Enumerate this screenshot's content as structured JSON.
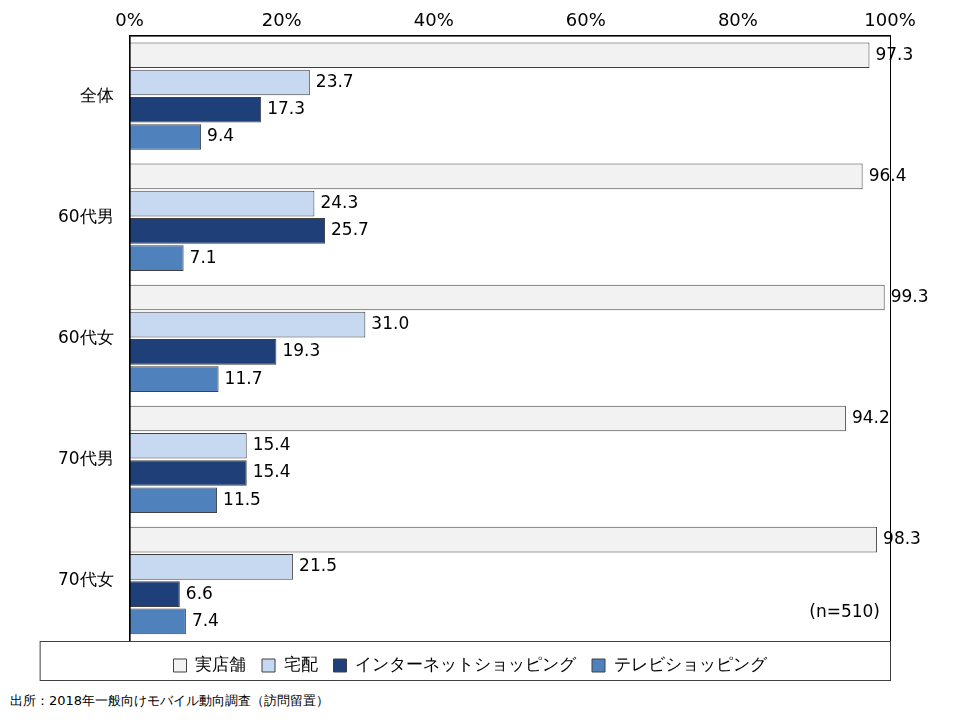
{
  "chart_data": {
    "type": "bar",
    "orientation": "horizontal",
    "categories": [
      "全体",
      "60代男",
      "60代女",
      "70代男",
      "70代女"
    ],
    "series": [
      {
        "name": "実店舗",
        "color": "#f2f2f2",
        "values": [
          97.3,
          96.4,
          99.3,
          94.2,
          98.3
        ],
        "value_labels": [
          "97.3",
          "96.4",
          "99.3",
          "94.2",
          "98.3"
        ]
      },
      {
        "name": "宅配",
        "color": "#c6d9f1",
        "values": [
          23.7,
          24.3,
          31.0,
          15.4,
          21.5
        ],
        "value_labels": [
          "23.7",
          "24.3",
          "31.0",
          "15.4",
          "21.5"
        ]
      },
      {
        "name": "インターネットショッピング",
        "color": "#1f3f78",
        "values": [
          17.3,
          25.7,
          19.3,
          15.4,
          6.6
        ],
        "value_labels": [
          "17.3",
          "25.7",
          "19.3",
          "15.4",
          "6.6"
        ]
      },
      {
        "name": "テレビショッピング",
        "color": "#4f81bd",
        "values": [
          9.4,
          7.1,
          11.7,
          11.5,
          7.4
        ],
        "value_labels": [
          "9.4",
          "7.1",
          "11.7",
          "11.5",
          "7.4"
        ]
      }
    ],
    "xlim": [
      0,
      100
    ],
    "xticks": [
      {
        "value": 0,
        "label": "0%"
      },
      {
        "value": 20,
        "label": "20%"
      },
      {
        "value": 40,
        "label": "40%"
      },
      {
        "value": 60,
        "label": "60%"
      },
      {
        "value": 80,
        "label": "80%"
      },
      {
        "value": 100,
        "label": "100%"
      }
    ],
    "grid": false,
    "legend": "bottom",
    "data_labels": true,
    "annotation": "(n=510)",
    "source": "出所：2018年一般向けモバイル動向調査（訪問留置）"
  }
}
